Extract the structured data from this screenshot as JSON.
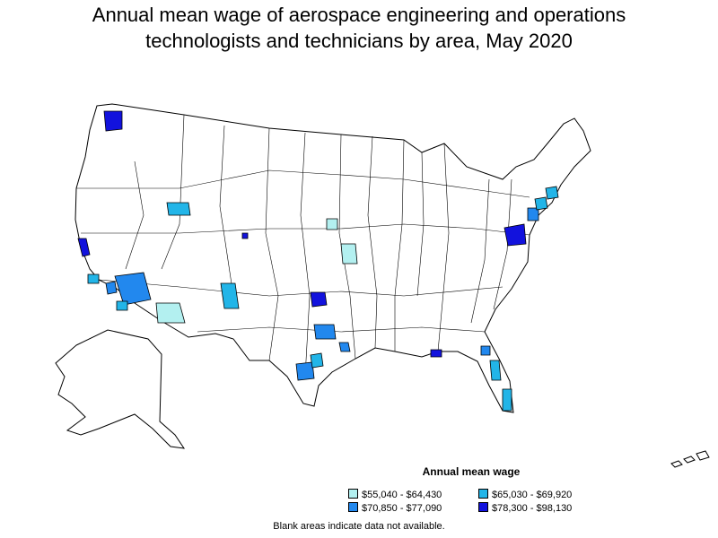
{
  "title_line1": "Annual mean wage of aerospace engineering and operations",
  "title_line2": "technologists and technicians by area, May 2020",
  "legend": {
    "title": "Annual mean wage",
    "items": [
      {
        "label": "$55,040 - $64,430",
        "color": "#b3f0f0"
      },
      {
        "label": "$65,030 - $69,920",
        "color": "#22b5e8"
      },
      {
        "label": "$70,850 - $77,090",
        "color": "#2288ee"
      },
      {
        "label": "$78,300 - $98,130",
        "color": "#1212dd"
      }
    ]
  },
  "footnote": "Blank areas indicate data not available.",
  "colors": {
    "tier1": "#b3f0f0",
    "tier2": "#22b5e8",
    "tier3": "#2288ee",
    "tier4": "#1212dd",
    "border": "#000000"
  }
}
